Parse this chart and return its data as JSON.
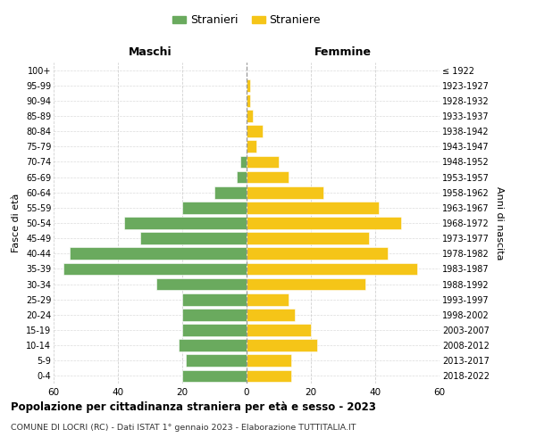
{
  "age_groups": [
    "0-4",
    "5-9",
    "10-14",
    "15-19",
    "20-24",
    "25-29",
    "30-34",
    "35-39",
    "40-44",
    "45-49",
    "50-54",
    "55-59",
    "60-64",
    "65-69",
    "70-74",
    "75-79",
    "80-84",
    "85-89",
    "90-94",
    "95-99",
    "100+"
  ],
  "birth_years": [
    "2018-2022",
    "2013-2017",
    "2008-2012",
    "2003-2007",
    "1998-2002",
    "1993-1997",
    "1988-1992",
    "1983-1987",
    "1978-1982",
    "1973-1977",
    "1968-1972",
    "1963-1967",
    "1958-1962",
    "1953-1957",
    "1948-1952",
    "1943-1947",
    "1938-1942",
    "1933-1937",
    "1928-1932",
    "1923-1927",
    "≤ 1922"
  ],
  "males": [
    20,
    19,
    21,
    20,
    20,
    20,
    28,
    57,
    55,
    33,
    38,
    20,
    10,
    3,
    2,
    0,
    0,
    0,
    0,
    0,
    0
  ],
  "females": [
    14,
    14,
    22,
    20,
    15,
    13,
    37,
    53,
    44,
    38,
    48,
    41,
    24,
    13,
    10,
    3,
    5,
    2,
    1,
    1,
    0
  ],
  "male_color": "#6aaa5e",
  "female_color": "#f5c518",
  "title": "Popolazione per cittadinanza straniera per età e sesso - 2023",
  "subtitle": "COMUNE DI LOCRI (RC) - Dati ISTAT 1° gennaio 2023 - Elaborazione TUTTITALIA.IT",
  "xlabel_left": "Maschi",
  "xlabel_right": "Femmine",
  "ylabel_left": "Fasce di età",
  "ylabel_right": "Anni di nascita",
  "xlim": 60,
  "legend_labels": [
    "Stranieri",
    "Straniere"
  ],
  "background_color": "#ffffff",
  "grid_color": "#cccccc"
}
